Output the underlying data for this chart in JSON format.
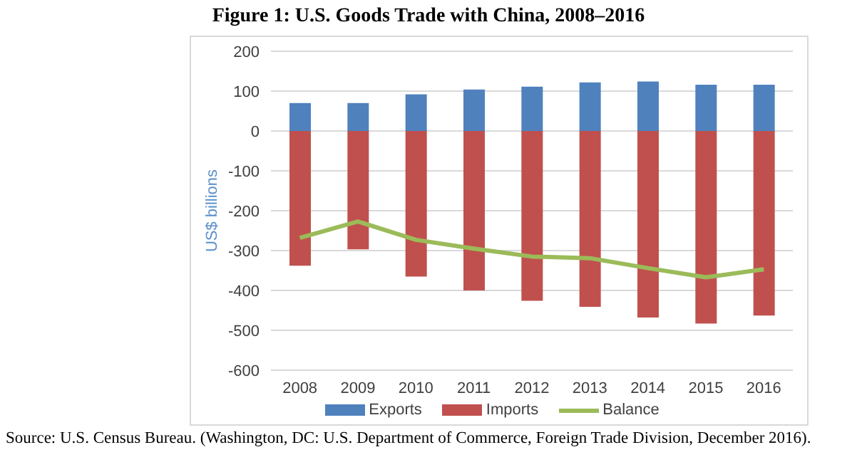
{
  "chart_data": {
    "type": "bar",
    "title": "Figure 1: U.S. Goods Trade with China, 2008–2016",
    "ylabel": "US$ billions",
    "categories": [
      "2008",
      "2009",
      "2010",
      "2011",
      "2012",
      "2013",
      "2014",
      "2015",
      "2016"
    ],
    "series": [
      {
        "name": "Exports",
        "color": "#4f81bd",
        "values": [
          70,
          70,
          92,
          104,
          111,
          122,
          124,
          116,
          116
        ]
      },
      {
        "name": "Imports",
        "color": "#c0504d",
        "values": [
          -338,
          -297,
          -365,
          -400,
          -426,
          -441,
          -468,
          -483,
          -463
        ]
      },
      {
        "name": "Balance",
        "type": "line",
        "color": "#9bbb59",
        "values": [
          -268,
          -227,
          -273,
          -295,
          -315,
          -319,
          -344,
          -367,
          -347
        ]
      }
    ],
    "stacked": true,
    "ylim": [
      -600,
      200
    ],
    "yticks": [
      -600,
      -500,
      -400,
      -300,
      -200,
      -100,
      0,
      100,
      200
    ],
    "grid": "y",
    "legend": "bottom",
    "marker": "none",
    "annotations": [
      "Source: U.S. Census Bureau. (Washington, DC: U.S. Department of Commerce, Foreign Trade Division, December 2016)."
    ]
  }
}
